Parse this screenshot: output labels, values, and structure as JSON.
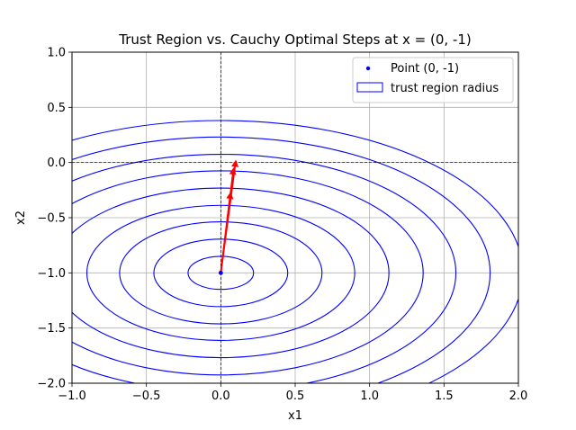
{
  "chart_data": {
    "type": "contour",
    "title": "Trust Region vs. Cauchy Optimal Steps at x = (0, -1)",
    "xlabel": "x1",
    "ylabel": "x2",
    "xlim": [
      -1.0,
      2.0
    ],
    "ylim": [
      -2.0,
      1.0
    ],
    "xticks": [
      -1.0,
      -0.5,
      0.0,
      0.5,
      1.0,
      1.5,
      2.0
    ],
    "yticks": [
      -2.0,
      -1.5,
      -1.0,
      -0.5,
      0.0,
      0.5,
      1.0
    ],
    "xtick_labels": [
      "−1.0",
      "−0.5",
      "0.0",
      "0.5",
      "1.0",
      "1.5",
      "2.0"
    ],
    "ytick_labels": [
      "−2.0",
      "−1.5",
      "−1.0",
      "−0.5",
      "0.0",
      "0.5",
      "1.0"
    ],
    "grid": true,
    "legend_position": "upper right",
    "reference_lines": {
      "horizontal_at_y": 0.0,
      "vertical_at_x": 0.0
    },
    "point": {
      "x": 0.0,
      "y": -1.0,
      "label": "Point (0, -1)",
      "color": "#0000ff"
    },
    "trust_region": {
      "center": [
        0.0,
        -1.0
      ],
      "radii": [
        0.22,
        0.45,
        0.68,
        0.9,
        1.13,
        1.36,
        1.58,
        1.81,
        2.03
      ],
      "aspect": 0.68,
      "label": "trust region radius",
      "color": "#0000ff"
    },
    "steps": [
      {
        "from": [
          0.0,
          -1.0
        ],
        "to": [
          0.065,
          -0.28
        ],
        "color": "#ff0000"
      },
      {
        "from": [
          0.0,
          -1.0
        ],
        "to": [
          0.085,
          -0.06
        ],
        "color": "#ff0000"
      },
      {
        "from": [
          0.0,
          -1.0
        ],
        "to": [
          0.1,
          0.01
        ],
        "color": "#ff0000"
      }
    ]
  }
}
